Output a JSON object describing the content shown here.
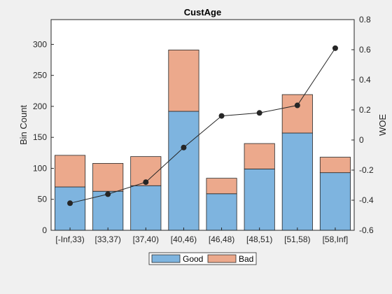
{
  "chart_data": {
    "type": "bar",
    "title": "CustAge",
    "ylabel": "Bin Count",
    "y2label": "WOE",
    "categories": [
      "[-Inf,33)",
      "[33,37)",
      "[37,40)",
      "[40,46)",
      "[46,48)",
      "[48,51)",
      "[51,58)",
      "[58,Inf]"
    ],
    "stacked": true,
    "series": [
      {
        "name": "Good",
        "type": "bar",
        "color": "#7eb4df",
        "values": [
          70,
          63,
          72,
          192,
          59,
          99,
          157,
          93
        ]
      },
      {
        "name": "Bad",
        "type": "bar",
        "color": "#eca98c",
        "values": [
          51,
          45,
          47,
          99,
          25,
          41,
          62,
          25
        ]
      }
    ],
    "woe": {
      "type": "line",
      "axis": "right",
      "color": "#262626",
      "values": [
        -0.42,
        -0.36,
        -0.28,
        -0.05,
        0.16,
        0.18,
        0.23,
        0.61
      ]
    },
    "ylim": [
      0,
      340
    ],
    "y2lim": [
      -0.6,
      0.8
    ],
    "yticks": [
      0,
      50,
      100,
      150,
      200,
      250,
      300
    ],
    "y2ticks": [
      -0.6,
      -0.4,
      -0.2,
      0,
      0.2,
      0.4,
      0.6,
      0.8
    ],
    "y2ticklabels": [
      "-0.6",
      "-0.4",
      "-0.2",
      "0",
      "0.2",
      "0.4",
      "0.6",
      "0.8"
    ],
    "grid": false,
    "legend_position": "bottom"
  }
}
